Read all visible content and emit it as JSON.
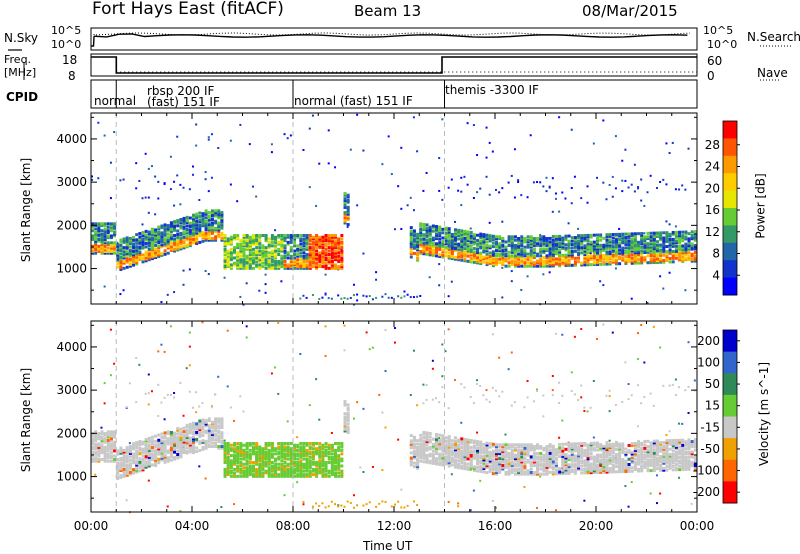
{
  "header": {
    "title": "Fort Hays East (fitACF)",
    "beam": "Beam 13",
    "date": "08/Mar/2015"
  },
  "summary": {
    "nsky_label": "N.Sky",
    "nsky_ticks": [
      "10^5",
      "10^0"
    ],
    "nsearch_label": "N.Search",
    "nsearch_ticks": [
      "10^5",
      "10^0"
    ],
    "freq_label_1": "Freq.",
    "freq_label_2": "[MHz]",
    "freq_ticks": [
      "18",
      "8"
    ],
    "nave_label": "Nave",
    "nave_ticks": [
      "60",
      "0"
    ],
    "cpid_label": "CPID",
    "cpid_segments": [
      {
        "start_hour": 0.0,
        "end_hour": 1.0,
        "label": "normal"
      },
      {
        "start_hour": 1.0,
        "end_hour": 8.0,
        "label": "rbsp 200 IF",
        "label2": "(fast) 151 IF"
      },
      {
        "start_hour": 8.0,
        "end_hour": 14.0,
        "label": "normal (fast) 151 IF"
      },
      {
        "start_hour": 14.0,
        "end_hour": 24.0,
        "label": "themis -3300 IF"
      }
    ],
    "freq_series": [
      {
        "start_hour": 0.0,
        "end_hour": 1.0,
        "mhz": 18
      },
      {
        "start_hour": 1.0,
        "end_hour": 13.9,
        "mhz": 8
      },
      {
        "start_hour": 13.9,
        "end_hour": 24.0,
        "mhz": 18
      }
    ]
  },
  "chart_data": [
    {
      "type": "heatmap",
      "name": "power",
      "ylabel": "Slant Range [km]",
      "xlabel": "Time UT",
      "xlim": [
        0,
        24
      ],
      "ylim": [
        180,
        4600
      ],
      "yticks": [
        1000,
        2000,
        3000,
        4000
      ],
      "xticks": [
        "00:00",
        "04:00",
        "08:00",
        "12:00",
        "16:00",
        "20:00",
        "00:00"
      ],
      "colorbar": {
        "label": "Power [dB]",
        "ticks": [
          "28",
          "24",
          "20",
          "16",
          "12",
          "8",
          "4"
        ],
        "colors": [
          "#ff0000",
          "#ff5500",
          "#ff9900",
          "#ffcc00",
          "#e6e600",
          "#66cc33",
          "#339966",
          "#2266aa",
          "#1133cc",
          "#0000ff"
        ]
      },
      "regions": [
        {
          "t0": 0.0,
          "t1": 1.0,
          "r0": 1500,
          "r1": 2200,
          "level": "mid"
        },
        {
          "t0": 1.0,
          "t1": 4.5,
          "r0": 1100,
          "r1": 2400,
          "level": "high"
        },
        {
          "t0": 5.2,
          "t1": 7.6,
          "r0": 1000,
          "r1": 1800,
          "level": "low"
        },
        {
          "t0": 8.5,
          "t1": 10.0,
          "r0": 1100,
          "r1": 1800,
          "level": "very_high"
        },
        {
          "t0": 13.0,
          "t1": 24.0,
          "r0": 1200,
          "r1": 2200,
          "level": "high"
        }
      ]
    },
    {
      "type": "heatmap",
      "name": "velocity",
      "ylabel": "Slant Range [km]",
      "xlabel": "Time UT",
      "xlim": [
        0,
        24
      ],
      "ylim": [
        180,
        4600
      ],
      "yticks": [
        1000,
        2000,
        3000,
        4000
      ],
      "xticks": [
        "00:00",
        "04:00",
        "08:00",
        "12:00",
        "16:00",
        "20:00",
        "00:00"
      ],
      "colorbar": {
        "label": "Velocity [m s^-1]",
        "ticks": [
          "200",
          "100",
          "50",
          "15",
          "-15",
          "-50",
          "-100",
          "-200"
        ],
        "colors": [
          "#0000cc",
          "#3366cc",
          "#2e8b57",
          "#66cc33",
          "#c8c8c8",
          "#f0a000",
          "#ff6600",
          "#ff0000"
        ]
      },
      "regions": [
        {
          "t0": 0.0,
          "t1": 4.5,
          "r0": 900,
          "r1": 2400,
          "level": "ground"
        },
        {
          "t0": 5.2,
          "t1": 10.0,
          "r0": 900,
          "r1": 1800,
          "level": "positive_small"
        },
        {
          "t0": 13.0,
          "t1": 24.0,
          "r0": 1200,
          "r1": 2200,
          "level": "ground"
        }
      ]
    }
  ]
}
